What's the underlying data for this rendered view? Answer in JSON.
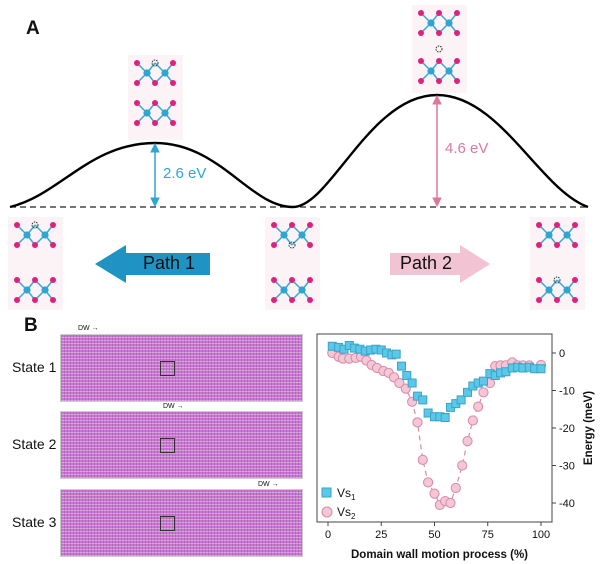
{
  "panel_a": {
    "label": "A",
    "barrier_1": {
      "text": "2.6 eV",
      "color": "#2aa7d6"
    },
    "barrier_2": {
      "text": "4.6 eV",
      "color": "#e0779f"
    },
    "path_1": {
      "label": "Path 1",
      "color": "#1f93c4",
      "direction": "left"
    },
    "path_2": {
      "label": "Path 2",
      "color": "#f2c3d3",
      "direction": "right"
    }
  },
  "panel_b": {
    "label": "B",
    "states": [
      {
        "label": "State 1",
        "dw_label": "DW"
      },
      {
        "label": "State 2",
        "dw_label": "DW"
      },
      {
        "label": "State 3",
        "dw_label": "DW"
      }
    ]
  },
  "chart_data": {
    "type": "scatter",
    "xlabel": "Domain wall motion process (%)",
    "ylabel": "Energy (meV)",
    "xlim": [
      -3,
      104
    ],
    "ylim": [
      -45,
      4.5
    ],
    "xticks": [
      "0",
      "25",
      "50",
      "75",
      "100"
    ],
    "yticks": [
      "0",
      "-10",
      "-20",
      "-30",
      "-40"
    ],
    "y_axis_side": "right",
    "legend_position": "bottom-left",
    "series": [
      {
        "name": "Vs1",
        "label_main": "Vs",
        "label_sub": "1",
        "marker": "square",
        "color": "#5bc8e8",
        "edge": "#3aa3c9",
        "line": "none",
        "x": [
          2,
          5,
          7.5,
          10,
          12.5,
          15,
          17.5,
          20,
          22.5,
          25,
          27.5,
          30,
          32,
          34.5,
          37,
          39.5,
          42,
          44.5,
          47,
          50,
          52.5,
          55,
          57.5,
          60,
          62.5,
          65.5,
          68,
          70.5,
          73,
          76,
          78.5,
          81,
          83.5,
          86.5,
          89,
          91.5,
          94.5,
          97,
          100
        ],
        "y": [
          1.8,
          1.5,
          1,
          2,
          1.3,
          1,
          0.5,
          0.8,
          1,
          0.8,
          0,
          -0.5,
          -0.3,
          -3.5,
          -6,
          -8,
          -11.5,
          -12.5,
          -16,
          -17,
          -17,
          -17.2,
          -14.5,
          -13.5,
          -12.5,
          -10.5,
          -8.8,
          -8,
          -7.5,
          -5.5,
          -6,
          -5.3,
          -5,
          -4,
          -3.8,
          -4,
          -3.8,
          -4.2,
          -4.2
        ]
      },
      {
        "name": "Vs2",
        "label_main": "Vs",
        "label_sub": "2",
        "marker": "circle",
        "color": "#f4c6d6",
        "edge": "#d88aa8",
        "line": "dashed",
        "x": [
          2,
          5,
          7,
          10,
          13,
          15.5,
          18,
          20.5,
          23,
          26,
          28.5,
          31,
          33.5,
          36.5,
          39.5,
          42,
          44.5,
          47,
          50,
          52.5,
          55,
          57.5,
          60,
          63,
          65.5,
          68,
          70.5,
          73,
          76,
          78.5,
          81,
          83.5,
          86.5,
          89,
          91.5,
          94.5,
          100
        ],
        "y": [
          0,
          -1,
          -1.5,
          -1.5,
          -1.3,
          -1,
          -2,
          -3.2,
          -4,
          -4.8,
          -5.3,
          -6.5,
          -8,
          -9.5,
          -13,
          -18.5,
          -28.5,
          -34.5,
          -37.5,
          -40.5,
          -39.5,
          -40,
          -36,
          -30,
          -23.5,
          -18,
          -14.3,
          -10.5,
          -8,
          -3.5,
          -3.3,
          -3.3,
          -2.5,
          -3.3,
          -3.3,
          -3.3,
          -3.2
        ]
      }
    ]
  }
}
